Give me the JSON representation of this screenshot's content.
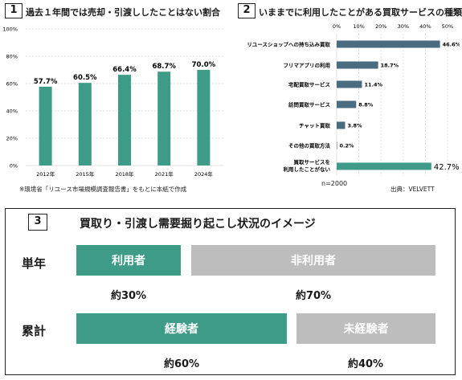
{
  "panel1": {
    "number": "1",
    "title": "過去１年間では売却・引渡ししたことはない割合",
    "note": "※環境省「リユース市場規模調査報告書」をもとに本紙で作成"
  },
  "panel2": {
    "number": "2",
    "title": "いままでに利用したことがある買取サービスの種類",
    "n_label": "n=2000",
    "source": "出典：VELVETT"
  },
  "panel3": {
    "number": "3",
    "title": "買取り・引渡し需要掘り起こし状況のイメージ",
    "rows": [
      {
        "label": "単年",
        "left_text": "利用者",
        "left_pct": "約30%",
        "right_text": "非利用者",
        "right_pct": "約70%",
        "left_share": 0.3
      },
      {
        "label": "累計",
        "left_text": "経験者",
        "left_pct": "約60%",
        "right_text": "未経験者",
        "right_pct": "約40%",
        "left_share": 0.6
      }
    ]
  },
  "colors": {
    "teal": "#3e9b87",
    "bar_blue": "#4b6b80",
    "gray": "#bdbdbd"
  },
  "chart_data": [
    {
      "type": "bar",
      "title": "過去１年間では売却・引渡ししたことはない割合",
      "categories": [
        "2012年",
        "2015年",
        "2018年",
        "2021年",
        "2024年"
      ],
      "values": [
        57.7,
        60.5,
        66.4,
        68.7,
        70.0
      ],
      "value_labels": [
        "57.7%",
        "60.5%",
        "66.4%",
        "68.7%",
        "70.0%"
      ],
      "yticks": [
        "0%",
        "20%",
        "40%",
        "60%",
        "80%",
        "100%"
      ],
      "ylim": [
        0,
        100
      ],
      "grid": true
    },
    {
      "type": "bar",
      "orientation": "horizontal",
      "title": "いままでに利用したことがある買取サービスの種類",
      "categories": [
        "リユースショップへの持ち込み買取",
        "フリマアプリの利用",
        "宅配買取サービス",
        "訪問買取サービス",
        "チャット買取",
        "その他の買取方法",
        "買取サービスを利用したことがない"
      ],
      "values": [
        46.6,
        18.7,
        11.4,
        8.8,
        3.8,
        0.2,
        42.7
      ],
      "value_labels": [
        "46.6%",
        "18.7%",
        "11.4%",
        "8.8%",
        "3.8%",
        "0.2%",
        "42.7%"
      ],
      "xticks": [
        "0%",
        "10%",
        "20%",
        "30%",
        "40%",
        "50%"
      ],
      "xlim": [
        0,
        50
      ],
      "grid": true
    }
  ]
}
